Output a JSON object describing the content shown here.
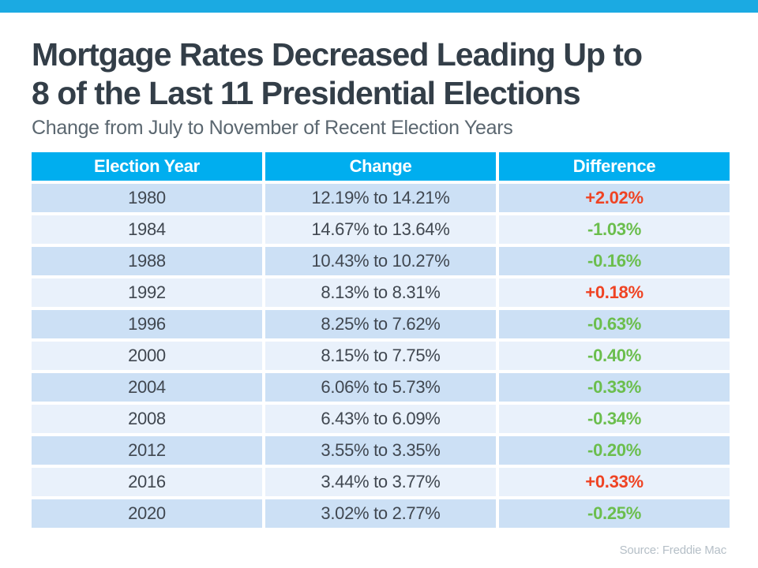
{
  "header": {
    "title_line1": "Mortgage Rates Decreased Leading Up to",
    "title_line2": "8 of the Last 11 Presidential Elections",
    "subtitle": "Change from July to November of Recent Election Years"
  },
  "footer": {
    "source": "Source: Freddie Mac"
  },
  "colors": {
    "topbar_bg": "#1BAAE2",
    "header_bg": "#00AEEF",
    "row_dark": "#CCE0F5",
    "row_light": "#E9F1FB",
    "title_color": "#333E48",
    "subtitle_color": "#5B6770",
    "cell_color": "#404750",
    "increase_color": "#EF4323",
    "decrease_color": "#6BBE4D",
    "source_color": "#B5BFC7"
  },
  "chart_data": {
    "type": "table",
    "title": "Mortgage Rates Decreased Leading Up to 8 of the Last 11 Presidential Elections",
    "subtitle": "Change from July to November of Recent Election Years",
    "columns": [
      "Election Year",
      "Change",
      "Difference"
    ],
    "rows": [
      {
        "year": "1980",
        "change": "12.19% to 14.21%",
        "difference": "+2.02%"
      },
      {
        "year": "1984",
        "change": "14.67% to 13.64%",
        "difference": "-1.03%"
      },
      {
        "year": "1988",
        "change": "10.43% to 10.27%",
        "difference": "-0.16%"
      },
      {
        "year": "1992",
        "change": "8.13% to 8.31%",
        "difference": "+0.18%"
      },
      {
        "year": "1996",
        "change": "8.25% to 7.62%",
        "difference": "-0.63%"
      },
      {
        "year": "2000",
        "change": "8.15% to 7.75%",
        "difference": "-0.40%"
      },
      {
        "year": "2004",
        "change": "6.06% to 5.73%",
        "difference": "-0.33%"
      },
      {
        "year": "2008",
        "change": "6.43% to 6.09%",
        "difference": "-0.34%"
      },
      {
        "year": "2012",
        "change": "3.55% to 3.35%",
        "difference": "-0.20%"
      },
      {
        "year": "2016",
        "change": "3.44% to 3.77%",
        "difference": "+0.33%"
      },
      {
        "year": "2020",
        "change": "3.02% to 2.77%",
        "difference": "-0.25%"
      }
    ]
  }
}
